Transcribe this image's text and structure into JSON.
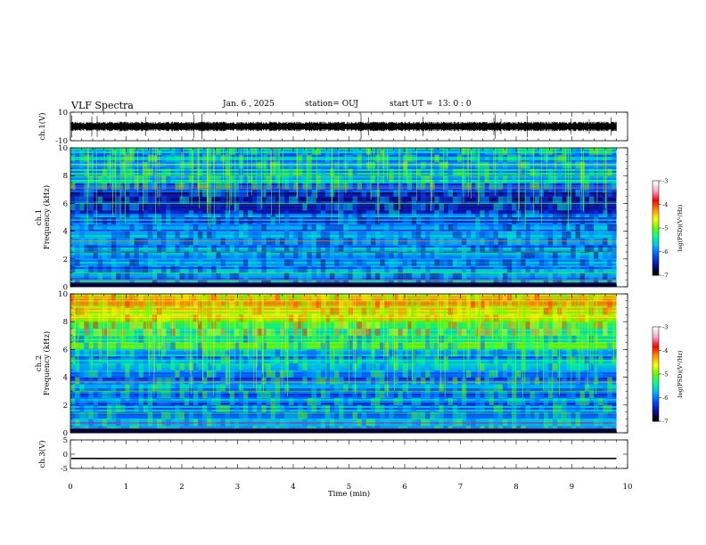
{
  "header": {
    "title": "VLF Spectra",
    "date": "Jan. 6 , 2025",
    "station": "station= OUJ",
    "start": "start UT =  13: 0 : 0"
  },
  "colors": {
    "spectrogram_background": "#0a1ea8",
    "colormap": [
      "#000000",
      "#1010a0",
      "#0050ff",
      "#00b4ff",
      "#00ff9c",
      "#64ff00",
      "#ffff00",
      "#ff8c00",
      "#ff0000",
      "#ffa0c8",
      "#ffffff"
    ]
  },
  "chart_data": [
    {
      "type": "line",
      "panel": "ch1-waveform",
      "ylabel": "ch.1(V)",
      "yticks": [
        "10",
        "-10"
      ],
      "ylim": [
        -10,
        10
      ],
      "xlim": [
        0,
        10
      ],
      "series": [
        {
          "level": 0,
          "style": "noisy waveform",
          "color": "#000000"
        }
      ]
    },
    {
      "type": "heatmap",
      "panel": "ch1-spectrogram",
      "ylabel": "ch.1\nFrequency (kHz)",
      "yticks": [
        "0",
        "2",
        "4",
        "6",
        "8",
        "10"
      ],
      "ylim": [
        0,
        10
      ],
      "xlim": [
        0,
        10.0
      ],
      "data_extent_min": 9.8,
      "colorbar": {
        "label": "log(PSD)(V²/Hz)",
        "ticks": [
          "-3",
          "-4",
          "-5",
          "-6",
          "-7"
        ],
        "range": [
          -7,
          -3
        ]
      }
    },
    {
      "type": "heatmap",
      "panel": "ch2-spectrogram",
      "ylabel": "ch.2\nFrequency (kHz)",
      "yticks": [
        "0",
        "2",
        "4",
        "6",
        "8",
        "10"
      ],
      "ylim": [
        0,
        10
      ],
      "xlim": [
        0,
        10.0
      ],
      "data_extent_min": 9.8,
      "colorbar": {
        "label": "log(PSD)(V²/Hz)",
        "ticks": [
          "-3",
          "-4",
          "-5",
          "-6",
          "-7"
        ],
        "range": [
          -7,
          -3
        ]
      }
    },
    {
      "type": "line",
      "panel": "ch3-waveform",
      "ylabel": "ch.3(V)",
      "yticks": [
        "5",
        "0",
        "-5"
      ],
      "ylim": [
        -5,
        5
      ],
      "xlim": [
        0,
        10
      ],
      "series": [
        {
          "level": -1.5,
          "style": "flat line",
          "color": "#000000"
        }
      ]
    }
  ],
  "xaxis": {
    "label": "Time (min)",
    "ticks": [
      "0",
      "1",
      "2",
      "3",
      "4",
      "5",
      "6",
      "7",
      "8",
      "9",
      "10"
    ]
  }
}
